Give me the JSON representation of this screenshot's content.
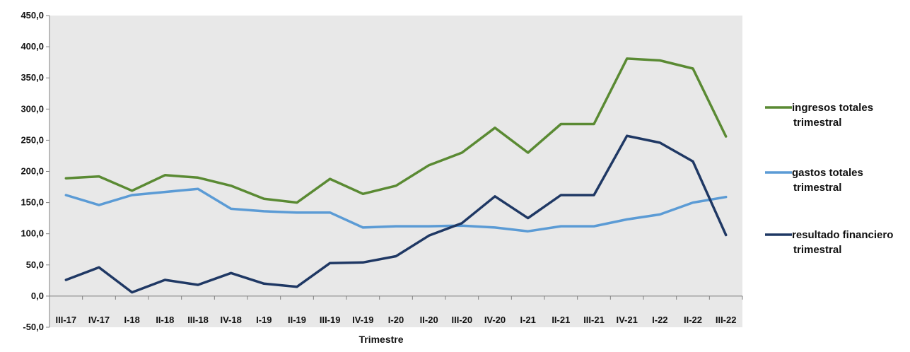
{
  "chart_data": {
    "type": "line",
    "title": "",
    "xlabel": "Trimestre",
    "ylabel": "",
    "ylim": [
      -50,
      450
    ],
    "ytick_step": 50,
    "ytick_labels": [
      "-50,0",
      "0,0",
      "50,0",
      "100,0",
      "150,0",
      "200,0",
      "250,0",
      "300,0",
      "350,0",
      "400,0",
      "450,0"
    ],
    "grid": false,
    "plot_background": "#e8e8e8",
    "legend_position": "right",
    "categories": [
      "III-17",
      "IV-17",
      "I-18",
      "II-18",
      "III-18",
      "IV-18",
      "I-19",
      "II-19",
      "III-19",
      "IV-19",
      "I-20",
      "II-20",
      "III-20",
      "IV-20",
      "I-21",
      "II-21",
      "III-21",
      "IV-21",
      "I-22",
      "II-22",
      "III-22"
    ],
    "series": [
      {
        "name": "ingresos totales trimestral",
        "legend_lines": [
          "ingresos totales",
          "trimestral"
        ],
        "color": "#5a8a33",
        "values": [
          189,
          192,
          169,
          194,
          190,
          177,
          156,
          150,
          188,
          164,
          177,
          210,
          230,
          270,
          230,
          276,
          276,
          381,
          378,
          365,
          256
        ]
      },
      {
        "name": "gastos totales trimestral",
        "legend_lines": [
          "gastos totales",
          "trimestral"
        ],
        "color": "#5b9bd5",
        "values": [
          162,
          146,
          162,
          167,
          172,
          140,
          136,
          134,
          134,
          110,
          112,
          112,
          113,
          110,
          104,
          112,
          112,
          123,
          131,
          150,
          159
        ]
      },
      {
        "name": "resultado financiero trimestral",
        "legend_lines": [
          "resultado financiero",
          "trimestral"
        ],
        "color": "#1f3864",
        "values": [
          26,
          46,
          6,
          26,
          18,
          37,
          20,
          15,
          53,
          54,
          64,
          97,
          117,
          160,
          125,
          162,
          162,
          257,
          246,
          216,
          98
        ]
      }
    ]
  }
}
